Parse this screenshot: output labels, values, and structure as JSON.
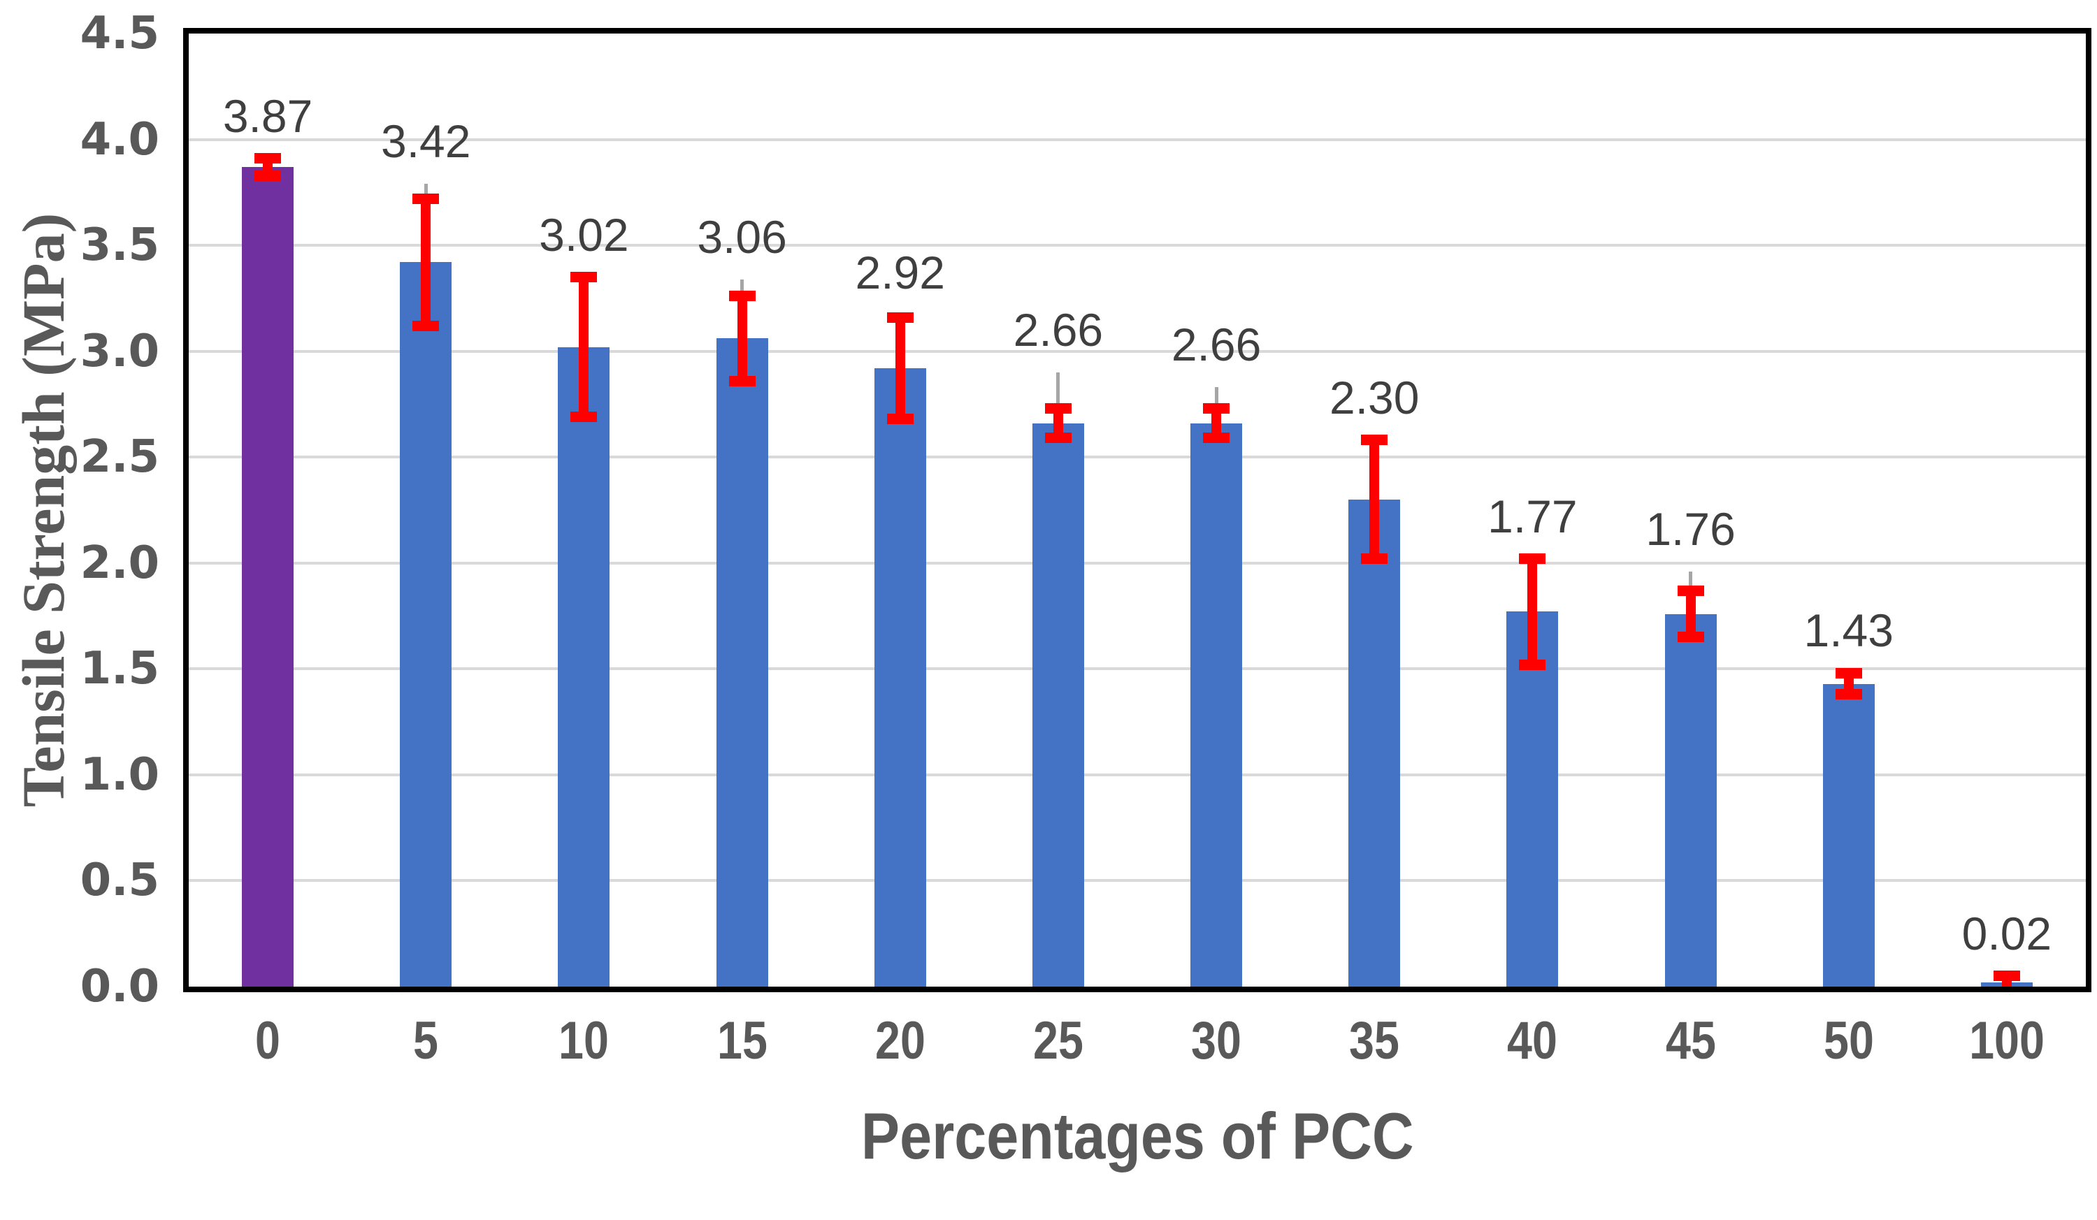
{
  "chart_data": {
    "type": "bar",
    "title": "",
    "xlabel": "Percentages of PCC",
    "ylabel": "Tensile Strength (MPa)",
    "categories": [
      "0",
      "5",
      "10",
      "15",
      "20",
      "25",
      "30",
      "35",
      "40",
      "45",
      "50",
      "100"
    ],
    "values": [
      3.87,
      3.42,
      3.02,
      3.06,
      2.92,
      2.66,
      2.66,
      2.3,
      1.77,
      1.76,
      1.43,
      0.02
    ],
    "data_labels": [
      "3.87",
      "3.42",
      "3.02",
      "3.06",
      "2.92",
      "2.66",
      "2.66",
      "2.30",
      "1.77",
      "1.76",
      "1.43",
      "0.02"
    ],
    "error_bars_red_plus_minus": [
      0.04,
      0.3,
      0.33,
      0.2,
      0.24,
      0.07,
      0.07,
      0.28,
      0.25,
      0.11,
      0.05,
      0.03
    ],
    "error_bars_gray_upper_extent": [
      3.9,
      3.79,
      3.35,
      3.34,
      3.17,
      2.9,
      2.83,
      2.58,
      2.02,
      1.96,
      1.48,
      0.05
    ],
    "ylim": [
      0,
      4.5
    ],
    "ytick_step": 0.5,
    "ytick_labels": [
      "0.0",
      "0.5",
      "1.0",
      "1.5",
      "2.0",
      "2.5",
      "3.0",
      "3.5",
      "4.0",
      "4.5"
    ],
    "grid": true,
    "legend_position": "none",
    "bar_color_default": "#4472C4",
    "bar_color_first": "#7030A0",
    "error_bar_color": "#FF0000",
    "error_bar_inner_color": "#A6A6A6"
  },
  "colors": {
    "background": "#FFFFFF",
    "gridline": "#D9D9D9",
    "plot_border": "#000000",
    "tick_label": "#595959",
    "data_label": "#3F3F3F",
    "axis_title": "#595959"
  }
}
